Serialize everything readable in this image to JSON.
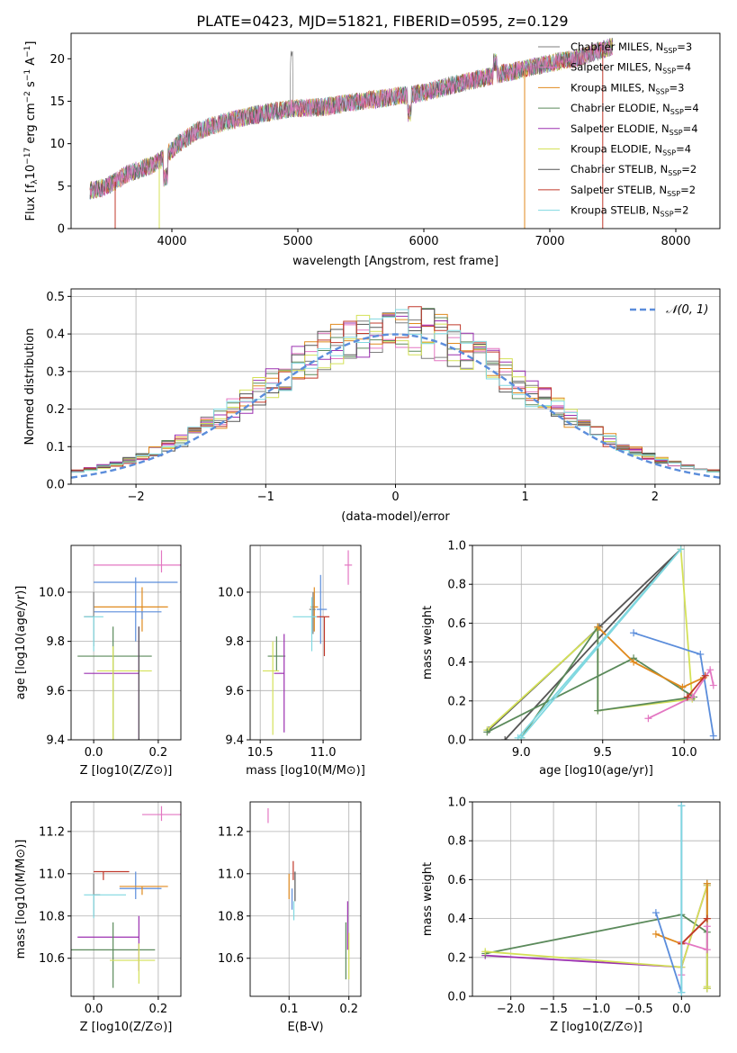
{
  "title": "PLATE=0423, MJD=51821, FIBERID=0595, z=0.129",
  "colors": {
    "Chabrier MILES": "#7f7f7f",
    "Salpeter MILES": "#e377c2",
    "Kroupa MILES": "#e08a1e",
    "Chabrier ELODIE": "#5b8a5b",
    "Salpeter ELODIE": "#9b30b0",
    "Kroupa ELODIE": "#d4e157",
    "Chabrier STELIB": "#555555",
    "Salpeter STELIB": "#c0392b",
    "Kroupa STELIB": "#80d8e0",
    "extra": "#5b8ddb"
  },
  "chart_data": [
    {
      "type": "line",
      "xlabel": "wavelength [Angstrom, rest frame]",
      "ylabel": "Flux [f_λ 10^-17 erg cm^-2 s^-1 A^-1]",
      "xlim": [
        3200,
        8350
      ],
      "ylim": [
        0,
        23
      ],
      "xticks": [
        4000,
        5000,
        6000,
        7000,
        8000
      ],
      "yticks": [
        0,
        5,
        10,
        15,
        20
      ],
      "legend_position": "upper right",
      "anchor_points": {
        "x": [
          3350,
          3450,
          3550,
          3650,
          3750,
          3850,
          3950,
          4050,
          4200,
          4400,
          4600,
          4800,
          5000,
          5200,
          5400,
          5600,
          5800,
          6000,
          6200,
          6400,
          6600,
          6800,
          7000,
          7200,
          7400,
          7500
        ],
        "y": [
          4.5,
          4.8,
          5.5,
          6.5,
          7.0,
          7.5,
          8.5,
          10.0,
          11.5,
          12.5,
          13.2,
          13.8,
          14.2,
          14.3,
          14.8,
          15.2,
          15.6,
          16.0,
          16.8,
          17.5,
          18.2,
          18.8,
          19.5,
          20.0,
          21.0,
          21.5
        ]
      },
      "series": [
        {
          "name": "Chabrier MILES, N_SSP=3"
        },
        {
          "name": "Salpeter MILES, N_SSP=4"
        },
        {
          "name": "Kroupa MILES, N_SSP=3"
        },
        {
          "name": "Chabrier ELODIE, N_SSP=4"
        },
        {
          "name": "Salpeter ELODIE, N_SSP=4"
        },
        {
          "name": "Kroupa ELODIE, N_SSP=4"
        },
        {
          "name": "Chabrier STELIB, N_SSP=2"
        },
        {
          "name": "Salpeter STELIB, N_SSP=2"
        },
        {
          "name": "Kroupa STELIB, N_SSP=2"
        }
      ]
    },
    {
      "type": "line",
      "xlabel": "(data-model)/error",
      "ylabel": "Normed distribution",
      "xlim": [
        -2.5,
        2.5
      ],
      "ylim": [
        0,
        0.52
      ],
      "xticks": [
        -2,
        -1,
        0,
        1,
        2
      ],
      "yticks": [
        0.0,
        0.1,
        0.2,
        0.3,
        0.4,
        0.5
      ],
      "legend": "𝒩(0, 1)",
      "bins": 50
    },
    {
      "type": "scatter",
      "xlabel": "Z [log10(Z/Z⊙)]",
      "ylabel": "age [log10(age/yr)]",
      "xlim": [
        -0.07,
        0.27
      ],
      "ylim": [
        9.4,
        10.19
      ],
      "xticks": [
        0.0,
        0.2
      ],
      "yticks": [
        9.4,
        9.6,
        9.8,
        10.0
      ],
      "points": [
        {
          "c": "Salpeter MILES",
          "x": 0.21,
          "y": 10.11,
          "xe": [
            0.21,
            0.21
          ],
          "ye": [
            10.08,
            10.17
          ]
        },
        {
          "c": "extra",
          "x": 0.13,
          "y": 10.04,
          "xe": [
            0.13,
            0.13
          ],
          "ye": [
            9.8,
            10.06
          ]
        },
        {
          "c": "Kroupa MILES",
          "x": 0.15,
          "y": 9.94,
          "xe": [
            0.15,
            0.08
          ],
          "ye": [
            9.84,
            10.02
          ]
        },
        {
          "c": "extra",
          "x": 0.15,
          "y": 9.92,
          "xe": [
            0.15,
            0.06
          ],
          "ye": [
            9.89,
            9.92
          ]
        },
        {
          "c": "Chabrier MILES",
          "x": 0.0,
          "y": 9.9,
          "xe": [
            0.03,
            0.0
          ],
          "ye": [
            9.78,
            10.0
          ]
        },
        {
          "c": "Kroupa STELIB",
          "x": 0.0,
          "y": 9.9,
          "xe": [
            0.03,
            0.03
          ],
          "ye": [
            9.76,
            9.9
          ]
        },
        {
          "c": "Chabrier ELODIE",
          "x": 0.06,
          "y": 9.74,
          "xe": [
            0.11,
            0.12
          ],
          "ye": [
            9.3,
            9.86
          ]
        },
        {
          "c": "Salpeter ELODIE",
          "x": 0.14,
          "y": 9.67,
          "xe": [
            0.17,
            0.0
          ],
          "ye": [
            9.25,
            9.86
          ]
        },
        {
          "c": "Kroupa ELODIE",
          "x": 0.06,
          "y": 9.68,
          "xe": [
            0.05,
            0.12
          ],
          "ye": [
            9.25,
            9.78
          ]
        },
        {
          "c": "Chabrier STELIB",
          "x": 0.14,
          "y": 9.67,
          "xe": [
            0.0,
            0.0
          ],
          "ye": [
            9.3,
            9.86
          ]
        }
      ]
    },
    {
      "type": "scatter",
      "xlabel": "mass [log10(M/M⊙)]",
      "xlim": [
        10.42,
        11.3
      ],
      "ylim": [
        9.4,
        10.19
      ],
      "xticks": [
        10.5,
        11.0
      ],
      "yticks": [
        9.4,
        9.6,
        9.8,
        10.0
      ],
      "points": [
        {
          "c": "Salpeter MILES",
          "x": 11.2,
          "y": 10.11,
          "xe": [
            0.03,
            0.03
          ],
          "ye": [
            0.08,
            0.06
          ]
        },
        {
          "c": "extra",
          "x": 10.98,
          "y": 9.93,
          "xe": [
            0.03,
            0.05
          ],
          "ye": [
            0.14,
            0.14
          ]
        },
        {
          "c": "Kroupa MILES",
          "x": 10.93,
          "y": 9.94,
          "xe": [
            0.03,
            0.03
          ],
          "ye": [
            0.1,
            0.08
          ]
        },
        {
          "c": "Chabrier MILES",
          "x": 10.92,
          "y": 9.93,
          "xe": [
            0.03,
            0.02
          ],
          "ye": [
            0.1,
            0.07
          ]
        },
        {
          "c": "Salpeter STELIB",
          "x": 11.01,
          "y": 9.9,
          "xe": [
            0.06,
            0.04
          ],
          "ye": [
            0.16,
            0.0
          ]
        },
        {
          "c": "Kroupa STELIB",
          "x": 10.91,
          "y": 9.9,
          "xe": [
            0.15,
            0.04
          ],
          "ye": [
            0.14,
            0.08
          ]
        },
        {
          "c": "Chabrier ELODIE",
          "x": 10.63,
          "y": 9.74,
          "xe": [
            0.07,
            0.07
          ],
          "ye": [
            0.06,
            0.08
          ]
        },
        {
          "c": "Salpeter ELODIE",
          "x": 10.69,
          "y": 9.67,
          "xe": [
            0.08,
            0.0
          ],
          "ye": [
            0.24,
            0.16
          ]
        },
        {
          "c": "Kroupa ELODIE",
          "x": 10.6,
          "y": 9.68,
          "xe": [
            0.08,
            0.05
          ],
          "ye": [
            0.26,
            0.12
          ]
        }
      ]
    },
    {
      "type": "line",
      "xlabel": "age [log10(age/yr)]",
      "ylabel": "mass weight",
      "xlim": [
        8.7,
        10.22
      ],
      "ylim": [
        0,
        1.0
      ],
      "xticks": [
        9.0,
        9.5,
        10.0
      ],
      "yticks": [
        0.0,
        0.2,
        0.4,
        0.6,
        0.8,
        1.0
      ],
      "series": [
        {
          "c": "Chabrier STELIB",
          "x": [
            8.8,
            9.48,
            9.98,
            8.9
          ],
          "y": [
            0.05,
            0.58,
            0.98,
            0.0
          ]
        },
        {
          "c": "Kroupa ELODIE",
          "x": [
            8.79,
            9.47,
            9.47,
            10.05,
            9.98
          ],
          "y": [
            0.05,
            0.57,
            0.15,
            0.21,
            0.98
          ]
        },
        {
          "c": "Chabrier ELODIE",
          "x": [
            8.79,
            9.69,
            10.06,
            9.47,
            9.47,
            9.0
          ],
          "y": [
            0.04,
            0.42,
            0.22,
            0.15,
            0.58,
            0.01
          ]
        },
        {
          "c": "Kroupa MILES",
          "x": [
            9.47,
            9.69,
            9.99,
            10.12
          ],
          "y": [
            0.58,
            0.4,
            0.27,
            0.32
          ]
        },
        {
          "c": "extra",
          "x": [
            9.69,
            10.1,
            10.18
          ],
          "y": [
            0.55,
            0.44,
            0.02
          ]
        },
        {
          "c": "Salpeter MILES",
          "x": [
            9.78,
            10.05,
            10.16,
            10.18
          ],
          "y": [
            0.11,
            0.22,
            0.36,
            0.28
          ]
        },
        {
          "c": "Salpeter STELIB",
          "x": [
            10.02,
            10.13
          ],
          "y": [
            0.22,
            0.33
          ]
        },
        {
          "c": "Kroupa STELIB",
          "x": [
            8.98,
            9.98,
            9.0
          ],
          "y": [
            0.01,
            0.98,
            0.01
          ]
        }
      ]
    },
    {
      "type": "scatter",
      "xlabel": "Z [log10(Z/Z⊙)]",
      "ylabel": "mass [log10(M/M⊙)]",
      "xlim": [
        -0.07,
        0.27
      ],
      "ylim": [
        10.42,
        11.34
      ],
      "xticks": [
        0.0,
        0.2
      ],
      "yticks": [
        10.6,
        10.8,
        11.0,
        11.2
      ],
      "points": [
        {
          "c": "Salpeter MILES",
          "x": 0.21,
          "y": 11.28,
          "xe": [
            0.06,
            0.06
          ],
          "ye": [
            0.03,
            0.04
          ]
        },
        {
          "c": "Salpeter STELIB",
          "x": 0.03,
          "y": 11.01,
          "xe": [
            0.03,
            0.08
          ],
          "ye": [
            0.04,
            0.0
          ]
        },
        {
          "c": "extra",
          "x": 0.13,
          "y": 10.93,
          "xe": [
            0.05,
            0.08
          ],
          "ye": [
            0.05,
            0.08
          ]
        },
        {
          "c": "Kroupa MILES",
          "x": 0.15,
          "y": 10.94,
          "xe": [
            0.07,
            0.08
          ],
          "ye": [
            0.04,
            0.0
          ]
        },
        {
          "c": "Chabrier MILES",
          "x": 0.0,
          "y": 10.9,
          "xe": [
            0.0,
            0.02
          ],
          "ye": [
            0.1,
            0.1
          ]
        },
        {
          "c": "Kroupa STELIB",
          "x": 0.0,
          "y": 10.9,
          "xe": [
            0.03,
            0.1
          ],
          "ye": [
            0.11,
            0.0
          ]
        },
        {
          "c": "Salpeter ELODIE",
          "x": 0.14,
          "y": 10.7,
          "xe": [
            0.19,
            0.0
          ],
          "ye": [
            0.16,
            0.1
          ]
        },
        {
          "c": "Chabrier ELODIE",
          "x": 0.06,
          "y": 10.64,
          "xe": [
            0.13,
            0.13
          ],
          "ye": [
            0.18,
            0.13
          ]
        },
        {
          "c": "Kroupa ELODIE",
          "x": 0.14,
          "y": 10.59,
          "xe": [
            0.09,
            0.05
          ],
          "ye": [
            0.11,
            0.08
          ]
        }
      ]
    },
    {
      "type": "scatter",
      "xlabel": "E(B-V)",
      "xlim": [
        0.035,
        0.22
      ],
      "ylim": [
        10.42,
        11.34
      ],
      "xticks": [
        0.1,
        0.2
      ],
      "yticks": [
        10.6,
        10.8,
        11.0,
        11.2
      ],
      "points": [
        {
          "c": "Salpeter MILES",
          "x": 0.065,
          "y": 11.28,
          "ye": [
            0.04,
            0.03
          ]
        },
        {
          "c": "Salpeter STELIB",
          "x": 0.107,
          "y": 11.02,
          "ye": [
            0.05,
            0.04
          ]
        },
        {
          "c": "Kroupa MILES",
          "x": 0.1,
          "y": 10.95,
          "ye": [
            0.07,
            0.05
          ]
        },
        {
          "c": "Chabrier STELIB",
          "x": 0.11,
          "y": 10.94,
          "ye": [
            0.07,
            0.07
          ]
        },
        {
          "c": "extra",
          "x": 0.105,
          "y": 10.88,
          "ye": [
            0.05,
            0.05
          ]
        },
        {
          "c": "Kroupa STELIB",
          "x": 0.108,
          "y": 10.82,
          "ye": [
            0.04,
            0.05
          ]
        },
        {
          "c": "Salpeter ELODIE",
          "x": 0.198,
          "y": 10.74,
          "ye": [
            0.1,
            0.13
          ]
        },
        {
          "c": "Chabrier ELODIE",
          "x": 0.195,
          "y": 10.62,
          "ye": [
            0.12,
            0.15
          ]
        },
        {
          "c": "Kroupa ELODIE",
          "x": 0.2,
          "y": 10.6,
          "ye": [
            0.1,
            0.12
          ]
        }
      ]
    },
    {
      "type": "line",
      "xlabel": "Z [log10(Z/Z⊙)]",
      "ylabel": "mass weight",
      "xlim": [
        -2.45,
        0.45
      ],
      "ylim": [
        0,
        1.0
      ],
      "xticks": [
        -2.0,
        -1.5,
        -1.0,
        -0.5,
        0.0
      ],
      "yticks": [
        0.0,
        0.2,
        0.4,
        0.6,
        0.8,
        1.0
      ],
      "series": [
        {
          "c": "Salpeter ELODIE",
          "x": [
            -2.3,
            0.0,
            0.3,
            0.3
          ],
          "y": [
            0.21,
            0.15,
            0.57,
            0.04
          ]
        },
        {
          "c": "Chabrier ELODIE",
          "x": [
            -2.3,
            0.0,
            0.3,
            0.3,
            0.3
          ],
          "y": [
            0.22,
            0.42,
            0.33,
            0.58,
            0.04
          ]
        },
        {
          "c": "Kroupa ELODIE",
          "x": [
            -2.3,
            0.0,
            0.3,
            0.3,
            0.3
          ],
          "y": [
            0.23,
            0.15,
            0.57,
            0.05,
            0.04
          ]
        },
        {
          "c": "Kroupa MILES",
          "x": [
            -0.3,
            0.0,
            0.3,
            0.3
          ],
          "y": [
            0.32,
            0.27,
            0.4,
            0.58
          ]
        },
        {
          "c": "extra",
          "x": [
            -0.3,
            0.0,
            0.0
          ],
          "y": [
            0.43,
            0.02,
            0.98
          ]
        },
        {
          "c": "Salpeter MILES",
          "x": [
            0.0,
            0.0,
            0.3,
            0.3
          ],
          "y": [
            0.11,
            0.28,
            0.24,
            0.36
          ]
        },
        {
          "c": "Salpeter STELIB",
          "x": [
            0.0,
            0.3
          ],
          "y": [
            0.27,
            0.4
          ]
        },
        {
          "c": "Kroupa STELIB",
          "x": [
            0.0,
            0.0
          ],
          "y": [
            0.02,
            0.98
          ]
        }
      ]
    }
  ]
}
